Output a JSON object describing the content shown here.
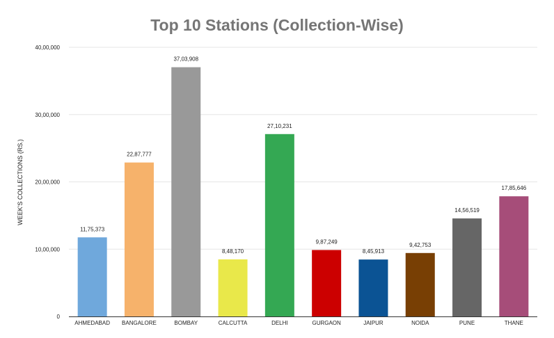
{
  "chart_data": {
    "type": "bar",
    "title": "Top 10 Stations (Collection-Wise)",
    "xlabel": "",
    "ylabel": "WEEK'S COLLECTIONS (RS.)",
    "ylim": [
      0,
      4000000
    ],
    "yticks": [
      0,
      1000000,
      2000000,
      3000000,
      4000000
    ],
    "ytick_labels": [
      "0",
      "10,00,000",
      "20,00,000",
      "30,00,000",
      "40,00,000"
    ],
    "grid": true,
    "legend": "none",
    "categories": [
      "AHMEDABAD",
      "BANGALORE",
      "BOMBAY",
      "CALCUTTA",
      "DELHI",
      "GURGAON",
      "JAIPUR",
      "NOIDA",
      "PUNE",
      "THANE"
    ],
    "values": [
      1175373,
      2287777,
      3703908,
      848170,
      2710231,
      987249,
      845913,
      942753,
      1456519,
      1785646
    ],
    "value_labels": [
      "11,75,373",
      "22,87,777",
      "37,03,908",
      "8,48,170",
      "27,10,231",
      "9,87,249",
      "8,45,913",
      "9,42,753",
      "14,56,519",
      "17,85,646"
    ],
    "colors": [
      "#6fa8dc",
      "#f6b26b",
      "#999999",
      "#e9e84a",
      "#34a853",
      "#cc0000",
      "#0b5394",
      "#783f04",
      "#666666",
      "#a64d79"
    ]
  }
}
